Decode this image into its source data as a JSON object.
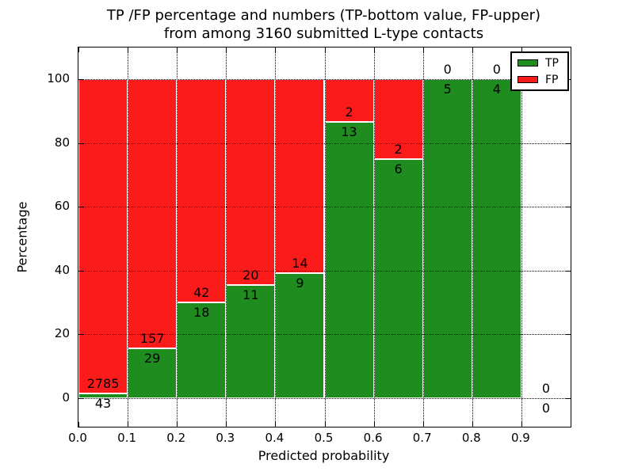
{
  "figure": {
    "title_line1": "TP /FP percentage and numbers (TP-bottom value, FP-upper)",
    "title_line2": "from among 3160 submitted L-type contacts"
  },
  "chart_data": {
    "type": "bar",
    "variant": "stacked-percentage-histogram",
    "title": "TP /FP percentage and numbers (TP-bottom value, FP-upper)\nfrom among 3160 submitted L-type contacts",
    "xlabel": "Predicted probability",
    "ylabel": "Percentage",
    "xlim": [
      0.0,
      1.0
    ],
    "ylim": [
      -9,
      110
    ],
    "x_ticks": [
      "0.0",
      "0.1",
      "0.2",
      "0.3",
      "0.4",
      "0.5",
      "0.6",
      "0.7",
      "0.8",
      "0.9"
    ],
    "x_tick_values": [
      0.0,
      0.1,
      0.2,
      0.3,
      0.4,
      0.5,
      0.6,
      0.7,
      0.8,
      0.9
    ],
    "y_ticks": [
      0,
      20,
      40,
      60,
      80,
      100
    ],
    "grid": "dotted",
    "grid_on": true,
    "bin_width": 0.1,
    "total_contacts": 3160,
    "annotation_note": "TP count below segment boundary, FP count above",
    "bins": [
      {
        "x0": 0.0,
        "x1": 0.1,
        "tp": 43,
        "fp": 2785,
        "tp_pct": 1.52
      },
      {
        "x0": 0.1,
        "x1": 0.2,
        "tp": 29,
        "fp": 157,
        "tp_pct": 15.59
      },
      {
        "x0": 0.2,
        "x1": 0.3,
        "tp": 18,
        "fp": 42,
        "tp_pct": 30.0
      },
      {
        "x0": 0.3,
        "x1": 0.4,
        "tp": 11,
        "fp": 20,
        "tp_pct": 35.48
      },
      {
        "x0": 0.4,
        "x1": 0.5,
        "tp": 9,
        "fp": 14,
        "tp_pct": 39.13
      },
      {
        "x0": 0.5,
        "x1": 0.6,
        "tp": 13,
        "fp": 2,
        "tp_pct": 86.67
      },
      {
        "x0": 0.6,
        "x1": 0.7,
        "tp": 6,
        "fp": 2,
        "tp_pct": 75.0
      },
      {
        "x0": 0.7,
        "x1": 0.8,
        "tp": 5,
        "fp": 0,
        "tp_pct": 100.0
      },
      {
        "x0": 0.8,
        "x1": 0.9,
        "tp": 4,
        "fp": 0,
        "tp_pct": 100.0
      },
      {
        "x0": 0.9,
        "x1": 1.0,
        "tp": 0,
        "fp": 0,
        "tp_pct": 0.0
      }
    ],
    "series": [
      {
        "name": "TP",
        "color": "#1f8c1f"
      },
      {
        "name": "FP",
        "color": "#fc1b1b"
      }
    ],
    "legend_position": "upper right",
    "legend": [
      {
        "label": "TP",
        "color": "#1f8c1f"
      },
      {
        "label": "FP",
        "color": "#fc1b1b"
      }
    ]
  }
}
